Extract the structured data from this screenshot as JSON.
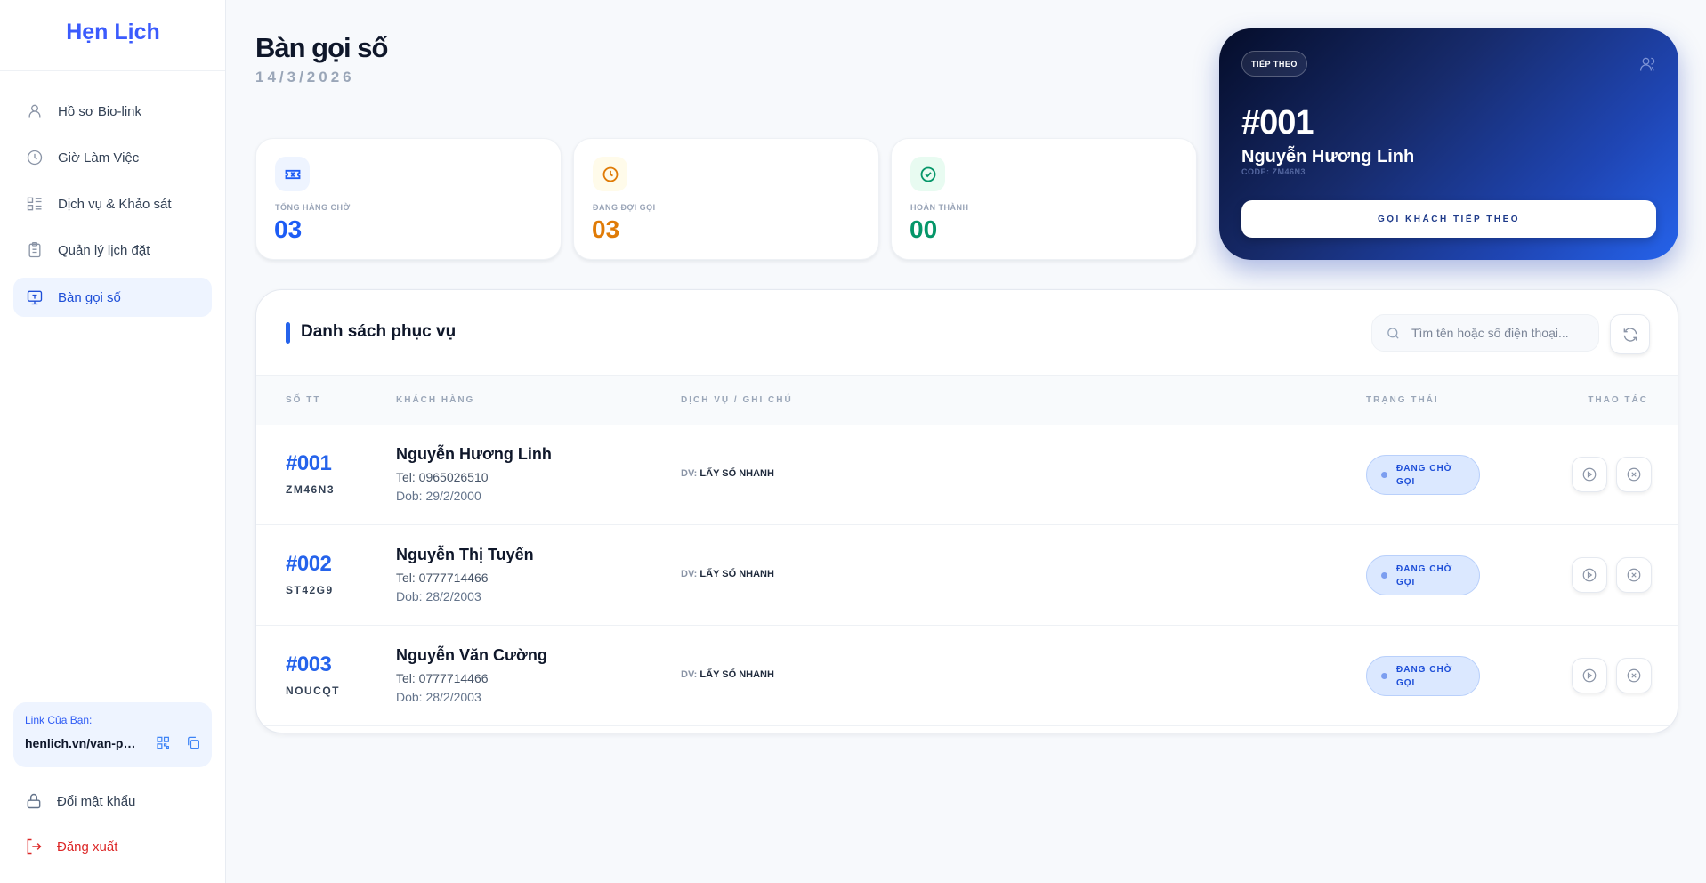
{
  "sidebar": {
    "logo": "Hẹn Lịch",
    "items": [
      {
        "label": "Hồ sơ Bio-link",
        "icon": "user-icon"
      },
      {
        "label": "Giờ Làm Việc",
        "icon": "clock-icon"
      },
      {
        "label": "Dịch vụ & Khảo sát",
        "icon": "list-icon"
      },
      {
        "label": "Quản lý lịch đặt",
        "icon": "clipboard-icon"
      },
      {
        "label": "Bàn gọi số",
        "icon": "monitor-icon",
        "active": true
      }
    ],
    "link_label": "Link Của Bạn:",
    "link_url": "henlich.vn/van-ph...",
    "change_password": "Đổi mật khẩu",
    "logout": "Đăng xuất"
  },
  "header": {
    "title": "Bàn gọi số",
    "date": "14/3/2026"
  },
  "stats": [
    {
      "label": "TỔNG HÀNG CHỜ",
      "value": "03",
      "color": "#1d5cf5"
    },
    {
      "label": "ĐANG ĐỢI GỌI",
      "value": "03",
      "color": "#e07b06"
    },
    {
      "label": "HOÀN THÀNH",
      "value": "00",
      "color": "#059669"
    }
  ],
  "next": {
    "badge": "TIẾP THEO",
    "number": "#001",
    "name": "Nguyễn Hương Linh",
    "code": "CODE: ZM46N3",
    "button": "GỌI KHÁCH TIẾP THEO"
  },
  "list": {
    "title": "Danh sách phục vụ",
    "search_placeholder": "Tìm tên hoặc số điện thoại...",
    "columns": [
      "SỐ TT",
      "KHÁCH HÀNG",
      "DỊCH VỤ / GHI CHÚ",
      "TRẠNG THÁI",
      "THAO TÁC"
    ],
    "rows": [
      {
        "no": "#001",
        "code": "ZM46N3",
        "name": "Nguyễn Hương Linh",
        "tel": "Tel: 0965026510",
        "dob": "Dob: 29/2/2000",
        "dv_label": "DV:",
        "service": "LẤY SỐ NHANH",
        "status": "ĐANG CHỜ GỌI"
      },
      {
        "no": "#002",
        "code": "ST42G9",
        "name": "Nguyễn Thị Tuyến",
        "tel": "Tel: 0777714466",
        "dob": "Dob: 28/2/2003",
        "dv_label": "DV:",
        "service": "LẤY SỐ NHANH",
        "status": "ĐANG CHỜ GỌI"
      },
      {
        "no": "#003",
        "code": "NOUCQT",
        "name": "Nguyễn Văn Cường",
        "tel": "Tel: 0777714466",
        "dob": "Dob: 28/2/2003",
        "dv_label": "DV:",
        "service": "LẤY SỐ NHANH",
        "status": "ĐANG CHỜ GỌI"
      }
    ]
  }
}
